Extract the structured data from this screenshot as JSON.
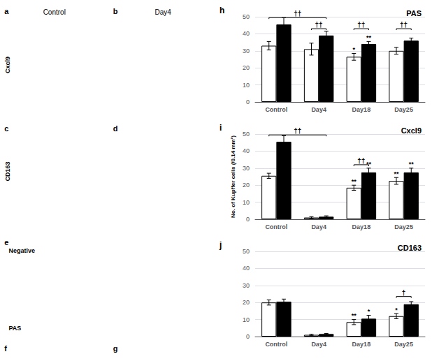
{
  "chart_data": [
    {
      "type": "bar",
      "title": "PAS",
      "label": "h",
      "categories": [
        "Control",
        "Day4",
        "Day18",
        "Day25"
      ],
      "series": [
        {
          "color": "#ffffff",
          "values": [
            33.0,
            31.0,
            26.5,
            30.0
          ],
          "errors": [
            2.5,
            3.5,
            2.0,
            2.0
          ]
        },
        {
          "color": "#000000",
          "values": [
            45.5,
            39.0,
            34.0,
            36.0
          ],
          "errors": [
            4.0,
            2.5,
            1.5,
            1.5
          ]
        }
      ],
      "ylim": [
        0,
        50
      ],
      "yticks": [
        0,
        10,
        20,
        30,
        40,
        50
      ],
      "grid": true,
      "brackets": [
        {
          "text": "††",
          "from_category": 0,
          "from_series": 0,
          "to_category": 1,
          "to_series": 1,
          "y": 49.5
        },
        {
          "text": "††",
          "from_category": 1,
          "from_series": 0,
          "to_category": 1,
          "to_series": 1,
          "y": 43.0
        },
        {
          "text": "††",
          "from_category": 2,
          "from_series": 0,
          "to_category": 2,
          "to_series": 1,
          "y": 43.0
        },
        {
          "text": "††",
          "from_category": 3,
          "from_series": 0,
          "to_category": 3,
          "to_series": 1,
          "y": 43.0
        }
      ],
      "annotations": [
        {
          "text": "*",
          "category": 2,
          "series": 0
        },
        {
          "text": "**",
          "category": 2,
          "series": 1
        }
      ]
    },
    {
      "type": "bar",
      "title": "Cxcl9",
      "label": "i",
      "ylabel": "No. of Kupffer cells (/0.14 mm²)",
      "categories": [
        "Control",
        "Day4",
        "Day18",
        "Day25"
      ],
      "series": [
        {
          "color": "#ffffff",
          "values": [
            25.5,
            1.0,
            18.5,
            22.5
          ],
          "errors": [
            1.5,
            0.5,
            1.5,
            2.0
          ]
        },
        {
          "color": "#000000",
          "values": [
            45.5,
            1.5,
            27.5,
            27.5
          ],
          "errors": [
            3.5,
            0.5,
            2.5,
            2.5
          ]
        }
      ],
      "ylim": [
        0,
        50
      ],
      "yticks": [
        0,
        10,
        20,
        30,
        40,
        50
      ],
      "grid": true,
      "brackets": [
        {
          "text": "††",
          "from_category": 0,
          "from_series": 0,
          "to_category": 1,
          "to_series": 1,
          "y": 49.5
        },
        {
          "text": "††",
          "from_category": 2,
          "from_series": 0,
          "to_category": 2,
          "to_series": 1,
          "y": 32.0
        }
      ],
      "annotations": [
        {
          "text": "**",
          "category": 2,
          "series": 0
        },
        {
          "text": "**",
          "category": 2,
          "series": 1
        },
        {
          "text": "**",
          "category": 3,
          "series": 0
        },
        {
          "text": "**",
          "category": 3,
          "series": 1
        }
      ]
    },
    {
      "type": "bar",
      "title": "CD163",
      "label": "j",
      "categories": [
        "Control",
        "Day4",
        "Day18",
        "Day25"
      ],
      "series": [
        {
          "color": "#ffffff",
          "values": [
            20.0,
            1.0,
            8.5,
            12.0
          ],
          "errors": [
            1.5,
            0.3,
            1.5,
            1.5
          ]
        },
        {
          "color": "#000000",
          "values": [
            20.5,
            1.5,
            10.5,
            19.0
          ],
          "errors": [
            1.5,
            0.3,
            2.0,
            1.5
          ]
        }
      ],
      "ylim": [
        0,
        50
      ],
      "yticks": [
        0,
        10,
        20,
        30,
        40,
        50
      ],
      "grid": true,
      "brackets": [
        {
          "text": "†",
          "from_category": 3,
          "from_series": 0,
          "to_category": 3,
          "to_series": 1,
          "y": 23.5
        }
      ],
      "annotations": [
        {
          "text": "**",
          "category": 2,
          "series": 0
        },
        {
          "text": "*",
          "category": 2,
          "series": 1
        },
        {
          "text": "*",
          "category": 3,
          "series": 0
        }
      ]
    }
  ],
  "annotations": [
    "a",
    "b",
    "c",
    "d",
    "e",
    "f",
    "g",
    "Cxcl9",
    "CD163",
    "Negative",
    "PAS",
    "Control",
    "Day4"
  ]
}
